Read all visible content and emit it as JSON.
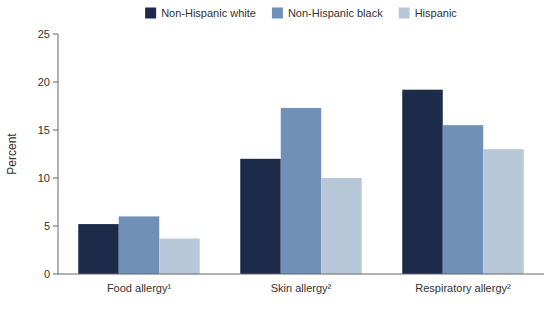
{
  "chart_data": {
    "type": "bar",
    "categories": [
      "Food allergy¹",
      "Skin allergy²",
      "Respiratory allergy²"
    ],
    "series": [
      {
        "name": "Non-Hispanic white",
        "color": "#1c2b4a",
        "values": [
          5.2,
          12.0,
          19.2
        ]
      },
      {
        "name": "Non-Hispanic black",
        "color": "#7090b8",
        "values": [
          6.0,
          17.3,
          15.5
        ]
      },
      {
        "name": "Hispanic",
        "color": "#b8c8d8",
        "values": [
          3.7,
          10.0,
          13.0
        ]
      }
    ],
    "y_label": "Percent",
    "ylim": [
      0,
      25
    ],
    "yticks": [
      0,
      5,
      10,
      15,
      20,
      25
    ],
    "grid": false,
    "legend": "top"
  }
}
